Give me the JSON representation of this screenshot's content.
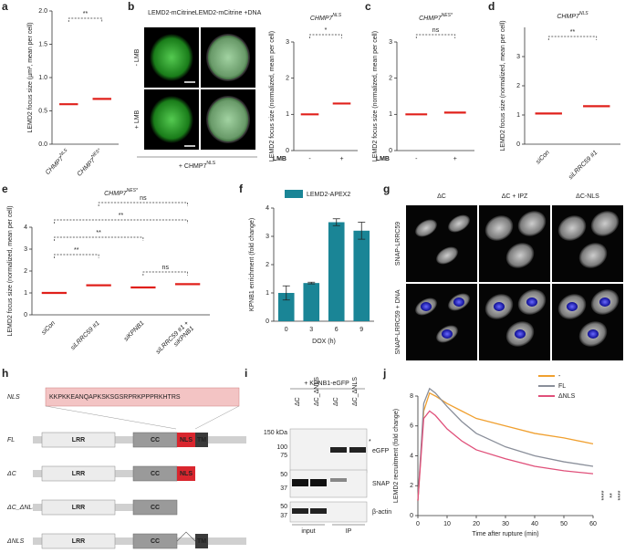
{
  "panel_labels": [
    "a",
    "b",
    "c",
    "d",
    "e",
    "f",
    "g",
    "h",
    "i",
    "j"
  ],
  "chart_data": [
    {
      "type": "dot",
      "ylabel": "LEMD2 focus size (µm², mean per cell)",
      "categories": [
        {
          "text": "CHMP7",
          "sup": "NLS"
        },
        {
          "text": "CHMP7",
          "sup": "NES*"
        }
      ],
      "means": [
        0.6,
        0.68
      ],
      "color": "#e0201b",
      "ylim": [
        0,
        2
      ],
      "yticks": [
        {
          "value": 0,
          "label": "0.0"
        },
        0.5,
        {
          "value": 1,
          "label": "1.0"
        },
        1.5,
        {
          "value": 2,
          "label": "2.0"
        }
      ],
      "significance": [
        {
          "from": 0,
          "to": 1,
          "label": "**"
        }
      ]
    },
    {
      "type": "dot",
      "title": {
        "text": "CHMP7",
        "sup": "NLS"
      },
      "ylabel": "LEMD2 focus size (normalized, mean per cell)",
      "categories": [
        "-",
        "+"
      ],
      "xlabel": "LMB",
      "xlabel_color": "#2b3a8f",
      "means": [
        1.0,
        1.3
      ],
      "color": "#e0201b",
      "ylim": [
        0,
        3
      ],
      "yticks": [
        0,
        1,
        2,
        3
      ],
      "significance": [
        {
          "from": 0,
          "to": 1,
          "label": "*"
        }
      ]
    },
    {
      "type": "dot",
      "title": {
        "text": "CHMP7",
        "sup": "NES*"
      },
      "ylabel": "LEMD2 focus size (normalized, mean per cell)",
      "categories": [
        "-",
        "+"
      ],
      "xlabel": "LMB",
      "xlabel_color": "#2b3a8f",
      "means": [
        1.0,
        1.05
      ],
      "color": "#e0201b",
      "ylim": [
        0,
        3
      ],
      "yticks": [
        0,
        1,
        2,
        3
      ],
      "significance": [
        {
          "from": 0,
          "to": 1,
          "label": "ns"
        }
      ]
    },
    {
      "type": "dot",
      "title": {
        "text": "CHMP7",
        "sup": "NLS"
      },
      "ylabel": "LEMD2 focus size (normalized, mean per cell)",
      "categories": [
        "siCon",
        "siLRRC59 #1"
      ],
      "means": [
        1.05,
        1.3
      ],
      "color": "#e0201b",
      "ylim": [
        0,
        4
      ],
      "yticks": [
        0,
        1,
        2,
        3
      ],
      "significance": [
        {
          "from": 0,
          "to": 1,
          "label": "**"
        }
      ]
    },
    {
      "type": "dot",
      "title": {
        "text": "CHMP7",
        "sup": "NES*"
      },
      "ylabel": "LEMD2 focus size (normalized, mean per cell)",
      "categories": [
        "siCon",
        "siLRRC59 #1",
        "siKPNB1",
        {
          "lines": [
            "siLRRC59 #1 +",
            "siKPNB1"
          ]
        }
      ],
      "means": [
        1.0,
        1.35,
        1.25,
        1.4
      ],
      "color": "#e0201b",
      "ylim": [
        0,
        4
      ],
      "yticks": [
        0,
        1,
        2,
        3,
        4
      ],
      "significance": [
        {
          "from": 1,
          "to": 3,
          "label": "ns"
        },
        {
          "from": 0,
          "to": 3,
          "label": "**"
        },
        {
          "from": 0,
          "to": 2,
          "label": "**"
        },
        {
          "from": 0,
          "to": 1,
          "label": "**"
        },
        {
          "from": 2,
          "to": 3,
          "label": "ns"
        }
      ]
    },
    {
      "type": "bar",
      "ylabel": "KPNB1 enrichment (fold change)",
      "xlabel": "DOX (h)",
      "categories": [
        "0",
        "3",
        "6",
        "9"
      ],
      "series": [
        {
          "name": "LEMD2-APEX2",
          "color": "#1a8596",
          "values": [
            1.0,
            1.35,
            3.5,
            3.2
          ],
          "errors": [
            0.25,
            0.03,
            0.12,
            0.3
          ]
        }
      ],
      "ylim": [
        0,
        4
      ],
      "yticks": [
        0,
        1,
        2,
        3,
        4
      ]
    },
    {
      "type": "line",
      "ylabel": "LEMD2 recruitment (fold change)",
      "xlabel": "Time after rupture (min)",
      "x": [
        0,
        2,
        4,
        6,
        10,
        15,
        20,
        30,
        40,
        50,
        60
      ],
      "series": [
        {
          "name": "-",
          "color": "#f0a030",
          "values": [
            1.0,
            7.0,
            8.2,
            8.0,
            7.5,
            7.0,
            6.5,
            6.0,
            5.5,
            5.2,
            4.8
          ]
        },
        {
          "name": "FL",
          "color": "#8a8f9a",
          "values": [
            1.0,
            7.5,
            8.5,
            8.2,
            7.3,
            6.3,
            5.5,
            4.6,
            4.0,
            3.6,
            3.3
          ]
        },
        {
          "name": "ΔNLS",
          "color": "#e0507a",
          "values": [
            1.0,
            6.5,
            7.0,
            6.7,
            5.8,
            5.0,
            4.4,
            3.8,
            3.3,
            3.0,
            2.8
          ]
        }
      ],
      "xlim": [
        0,
        60
      ],
      "xticks": [
        0,
        10,
        20,
        30,
        40,
        50,
        60
      ],
      "ylim": [
        0,
        8
      ],
      "yticks": [
        0,
        2,
        4,
        6,
        8
      ],
      "legend": "upper right",
      "significance": [
        "****",
        "**",
        "****"
      ]
    }
  ],
  "images_b": {
    "columns": [
      "LEMD2-mCitrine",
      "LEMD2-mCitrine +DNA"
    ],
    "rows": [
      "- LMB",
      "+ LMB"
    ],
    "footer": {
      "text": "+ CHMP7",
      "sup": "NLS"
    }
  },
  "images_g": {
    "columns": [
      "ΔC",
      "ΔC + IPZ",
      "ΔC-NLS"
    ],
    "rows": [
      "SNAP-LRRC59",
      "SNAP-LRRC59 + DNA"
    ]
  },
  "diagram_h": {
    "nls_label": "NLS",
    "sequence": "KKPKKEANQAPKSKSGSRPRKPPPRKHTRS",
    "constructs": [
      "FL",
      "ΔC",
      "ΔC_ΔNLS",
      "ΔNLS"
    ],
    "domains": {
      "lrr": "LRR",
      "cc": "CC",
      "nls": "NLS",
      "tm": "TM"
    }
  },
  "blot_i": {
    "header": "+ KPNB1-eGFP",
    "lanes": [
      "ΔC",
      "ΔC_ΔNLS",
      "ΔC",
      "ΔC_ΔNLS"
    ],
    "markers": [
      "150 kDa",
      "100",
      "75",
      "50",
      "37",
      "50",
      "37"
    ],
    "bands": [
      "eGFP",
      "SNAP",
      "β-actin"
    ],
    "star": "*",
    "groups": [
      "input",
      "IP"
    ]
  }
}
